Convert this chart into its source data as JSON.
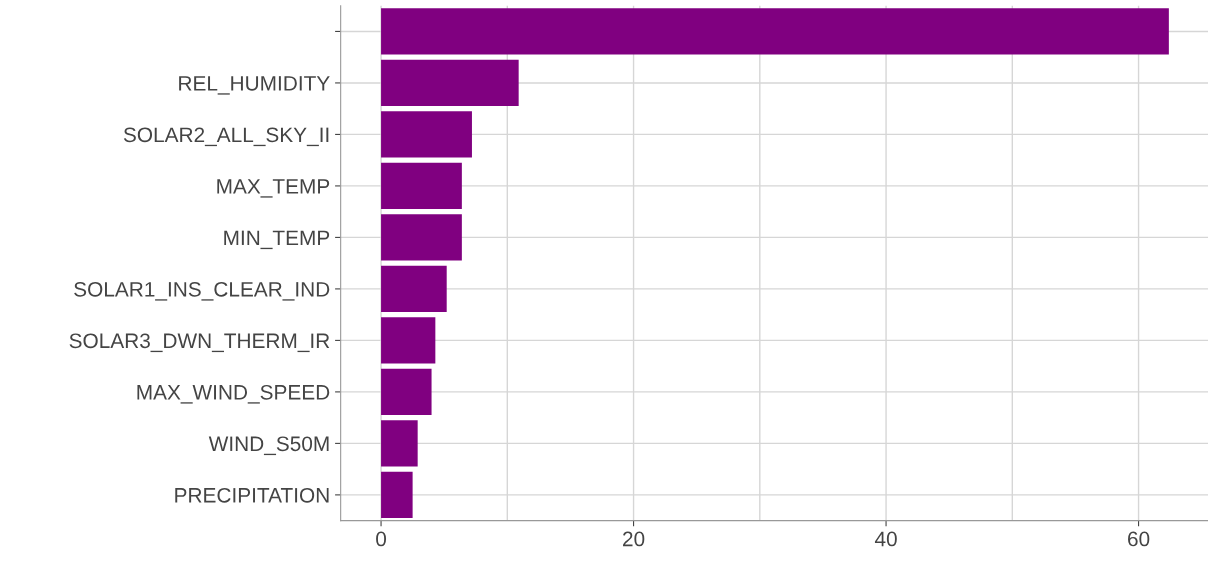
{
  "chart_data": {
    "type": "bar",
    "orientation": "horizontal",
    "categories": [
      null,
      "REL_HUMIDITY",
      "SOLAR2_ALL_SKY_II",
      "MAX_TEMP",
      "MIN_TEMP",
      "SOLAR1_INS_CLEAR_IND",
      "SOLAR3_DWN_THERM_IR",
      "MAX_WIND_SPEED",
      "WIND_S50M",
      "PRECIPITATION"
    ],
    "values": [
      62.4,
      10.9,
      7.2,
      6.4,
      6.4,
      5.2,
      4.3,
      4.0,
      2.9,
      2.5
    ],
    "color": "#800080",
    "xlim": [
      -3.2,
      65.5
    ],
    "xticks": [
      0,
      {
        "value": 10,
        "label": null
      },
      20,
      {
        "value": 30,
        "label": null
      },
      40,
      {
        "value": 50,
        "label": null
      },
      60
    ],
    "grid": true
  }
}
